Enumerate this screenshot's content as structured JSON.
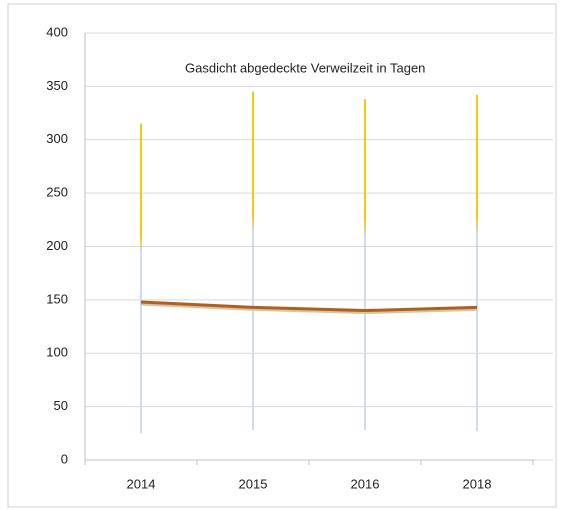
{
  "chart_data": {
    "type": "line",
    "title": "Gasdicht abgedeckte Verweilzeit  in Tagen",
    "categories": [
      "2014",
      "2015",
      "2016",
      "2018"
    ],
    "values": [
      148,
      143,
      140,
      143
    ],
    "color": "#b0601e",
    "lows": [
      25,
      28,
      28,
      27
    ],
    "highs": [
      315,
      345,
      338,
      342
    ],
    "range_colors": [
      "#cddcf5",
      "#f5c518"
    ],
    "ylim": [
      0,
      400
    ],
    "yticks": [
      0,
      50,
      100,
      150,
      200,
      250,
      300,
      350,
      400
    ],
    "grid": true
  }
}
